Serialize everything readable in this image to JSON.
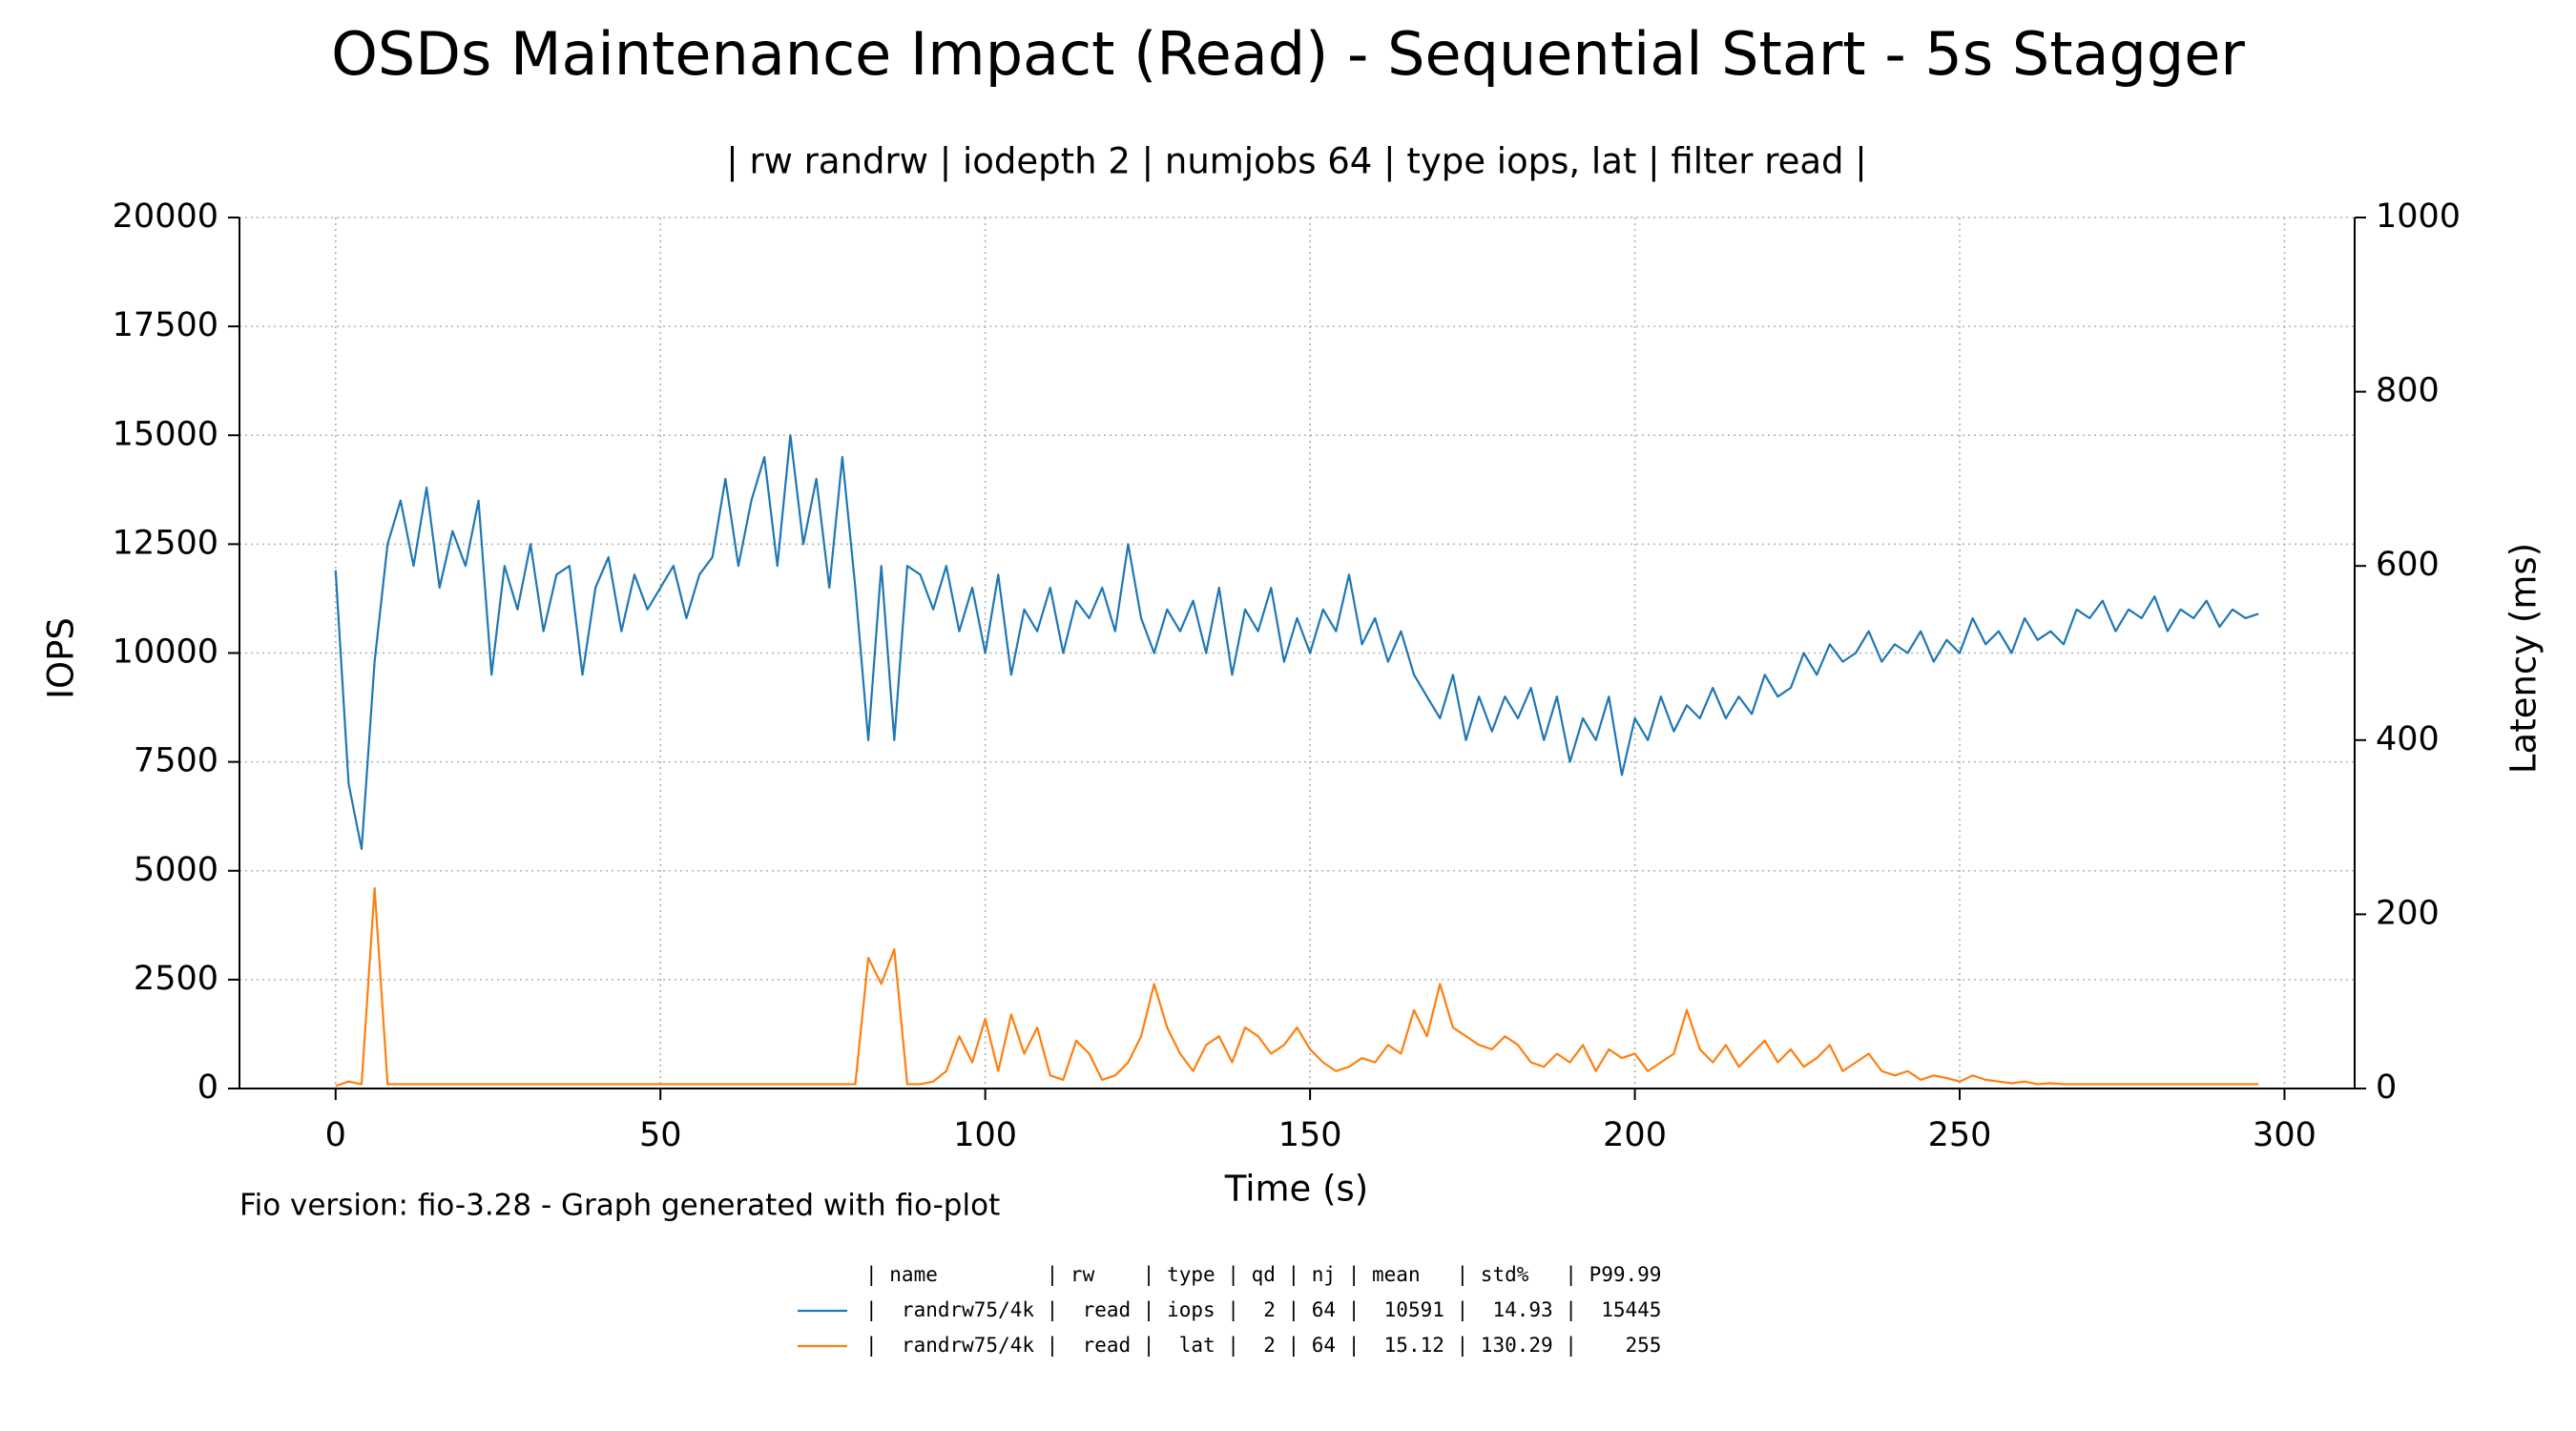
{
  "chart_data": {
    "type": "line",
    "title": "OSDs Maintenance Impact (Read) - Sequential Start - 5s Stagger",
    "subtitle": "| rw randrw | iodepth 2 | numjobs 64 | type iops, lat | filter read |",
    "xlabel": "Time (s)",
    "ylabel": "IOPS",
    "y2label": "Latency (ms)",
    "footer": "Fio version: fio-3.28 - Graph generated with fio-plot",
    "legend_header": "| name         | rw    | type | qd | nj | mean   | std%   | P99.99",
    "x": [
      0,
      2,
      4,
      6,
      8,
      10,
      12,
      14,
      16,
      18,
      20,
      22,
      24,
      26,
      28,
      30,
      32,
      34,
      36,
      38,
      40,
      42,
      44,
      46,
      48,
      50,
      52,
      54,
      56,
      58,
      60,
      62,
      64,
      66,
      68,
      70,
      72,
      74,
      76,
      78,
      80,
      82,
      84,
      86,
      88,
      90,
      92,
      94,
      96,
      98,
      100,
      102,
      104,
      106,
      108,
      110,
      112,
      114,
      116,
      118,
      120,
      122,
      124,
      126,
      128,
      130,
      132,
      134,
      136,
      138,
      140,
      142,
      144,
      146,
      148,
      150,
      152,
      154,
      156,
      158,
      160,
      162,
      164,
      166,
      168,
      170,
      172,
      174,
      176,
      178,
      180,
      182,
      184,
      186,
      188,
      190,
      192,
      194,
      196,
      198,
      200,
      202,
      204,
      206,
      208,
      210,
      212,
      214,
      216,
      218,
      220,
      222,
      224,
      226,
      228,
      230,
      232,
      234,
      236,
      238,
      240,
      242,
      244,
      246,
      248,
      250,
      252,
      254,
      256,
      258,
      260,
      262,
      264,
      266,
      268,
      270,
      272,
      274,
      276,
      278,
      280,
      282,
      284,
      286,
      288,
      290,
      292,
      294,
      296
    ],
    "series": [
      {
        "name": "|  randrw75/4k |  read | iops |  2 | 64 |  10591 |  14.93 |  15445",
        "color": "#1f77b4",
        "values": [
          11900,
          7000,
          5500,
          9800,
          12500,
          13500,
          12000,
          13800,
          11500,
          12800,
          12000,
          13500,
          9500,
          12000,
          11000,
          12500,
          10500,
          11800,
          12000,
          9500,
          11500,
          12200,
          10500,
          11800,
          11000,
          11500,
          12000,
          10800,
          11800,
          12200,
          14000,
          12000,
          13500,
          14500,
          12000,
          15000,
          12500,
          14000,
          11500,
          14500,
          11500,
          8000,
          12000,
          8000,
          12000,
          11800,
          11000,
          12000,
          10500,
          11500,
          10000,
          11800,
          9500,
          11000,
          10500,
          11500,
          10000,
          11200,
          10800,
          11500,
          10500,
          12500,
          10800,
          10000,
          11000,
          10500,
          11200,
          10000,
          11500,
          9500,
          11000,
          10500,
          11500,
          9800,
          10800,
          10000,
          11000,
          10500,
          11800,
          10200,
          10800,
          9800,
          10500,
          9500,
          9000,
          8500,
          9500,
          8000,
          9000,
          8200,
          9000,
          8500,
          9200,
          8000,
          9000,
          7500,
          8500,
          8000,
          9000,
          7200,
          8500,
          8000,
          9000,
          8200,
          8800,
          8500,
          9200,
          8500,
          9000,
          8600,
          9500,
          9000,
          9200,
          10000,
          9500,
          10200,
          9800,
          10000,
          10500,
          9800,
          10200,
          10000,
          10500,
          9800,
          10300,
          10000,
          10800,
          10200,
          10500,
          10000,
          10800,
          10300,
          10500,
          10200,
          11000,
          10800,
          11200,
          10500,
          11000,
          10800,
          11300,
          10500,
          11000,
          10800,
          11200,
          10600,
          11000,
          10800,
          10900
        ]
      },
      {
        "name": "|  randrw75/4k |  read |  lat |  2 | 64 |  15.12 | 130.29 |    255",
        "color": "#ff7f0e",
        "axis": "y2",
        "values": [
          3,
          8,
          5,
          230,
          5,
          5,
          5,
          5,
          5,
          5,
          5,
          5,
          5,
          5,
          5,
          5,
          5,
          5,
          5,
          5,
          5,
          5,
          5,
          5,
          5,
          5,
          5,
          5,
          5,
          5,
          5,
          5,
          5,
          5,
          5,
          5,
          5,
          5,
          5,
          5,
          5,
          150,
          120,
          160,
          5,
          5,
          8,
          20,
          60,
          30,
          80,
          20,
          85,
          40,
          70,
          15,
          10,
          55,
          40,
          10,
          15,
          30,
          60,
          120,
          70,
          40,
          20,
          50,
          60,
          30,
          70,
          60,
          40,
          50,
          70,
          45,
          30,
          20,
          25,
          35,
          30,
          50,
          40,
          90,
          60,
          120,
          70,
          60,
          50,
          45,
          60,
          50,
          30,
          25,
          40,
          30,
          50,
          20,
          45,
          35,
          40,
          20,
          30,
          40,
          90,
          45,
          30,
          50,
          25,
          40,
          55,
          30,
          45,
          25,
          35,
          50,
          20,
          30,
          40,
          20,
          15,
          20,
          10,
          15,
          12,
          8,
          15,
          10,
          8,
          6,
          8,
          5,
          6,
          5,
          5,
          5,
          5,
          5,
          5,
          5,
          5,
          5,
          5,
          5,
          5,
          5,
          5,
          5,
          5
        ]
      }
    ],
    "xlim": [
      -14.8,
      310.8
    ],
    "ylim": [
      0,
      20000
    ],
    "y2lim": [
      0,
      1000
    ],
    "xticks": [
      0,
      50,
      100,
      150,
      200,
      250,
      300
    ],
    "yticks": [
      0,
      2500,
      5000,
      7500,
      10000,
      12500,
      15000,
      17500,
      20000
    ],
    "y2ticks": [
      0,
      200,
      400,
      600,
      800,
      1000
    ],
    "grid": true
  }
}
